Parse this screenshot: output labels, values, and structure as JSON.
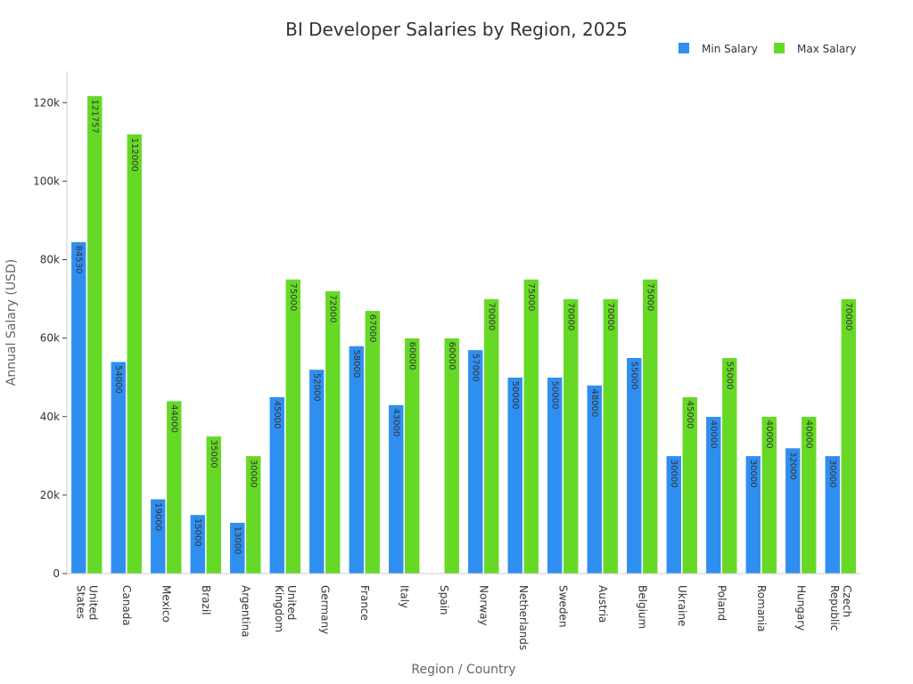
{
  "chart_data": {
    "type": "bar",
    "title": "BI Developer Salaries by Region, 2025",
    "xlabel": "Region / Country",
    "ylabel": "Annual Salary (USD)",
    "ylim": [
      0,
      128000
    ],
    "yticks": [
      0,
      20000,
      40000,
      60000,
      80000,
      100000,
      120000
    ],
    "ytick_labels": [
      "0",
      "20k",
      "40k",
      "60k",
      "80k",
      "100k",
      "120k"
    ],
    "legend_position": "top-right",
    "categories": [
      [
        "United",
        "States"
      ],
      [
        "Canada"
      ],
      [
        "Mexico"
      ],
      [
        "Brazil"
      ],
      [
        "Argentina"
      ],
      [
        "United",
        "Kingdom"
      ],
      [
        "Germany"
      ],
      [
        "France"
      ],
      [
        "Italy"
      ],
      [
        "Spain"
      ],
      [
        "Norway"
      ],
      [
        "Netherlands"
      ],
      [
        "Sweden"
      ],
      [
        "Austria"
      ],
      [
        "Belgium"
      ],
      [
        "Ukraine"
      ],
      [
        "Poland"
      ],
      [
        "Romania"
      ],
      [
        "Hungary"
      ],
      [
        "Czech",
        "Republic"
      ]
    ],
    "series": [
      {
        "name": "Min Salary",
        "color": "#2f8ff0",
        "values": [
          84530,
          54000,
          19000,
          15000,
          13000,
          45000,
          52000,
          58000,
          43000,
          null,
          57000,
          50000,
          50000,
          48000,
          55000,
          30000,
          40000,
          30000,
          32000,
          30000
        ]
      },
      {
        "name": "Max Salary",
        "color": "#66d926",
        "values": [
          121757,
          112000,
          44000,
          35000,
          30000,
          75000,
          72000,
          67000,
          60000,
          60000,
          70000,
          75000,
          70000,
          70000,
          75000,
          45000,
          55000,
          40000,
          40000,
          70000
        ]
      }
    ]
  }
}
